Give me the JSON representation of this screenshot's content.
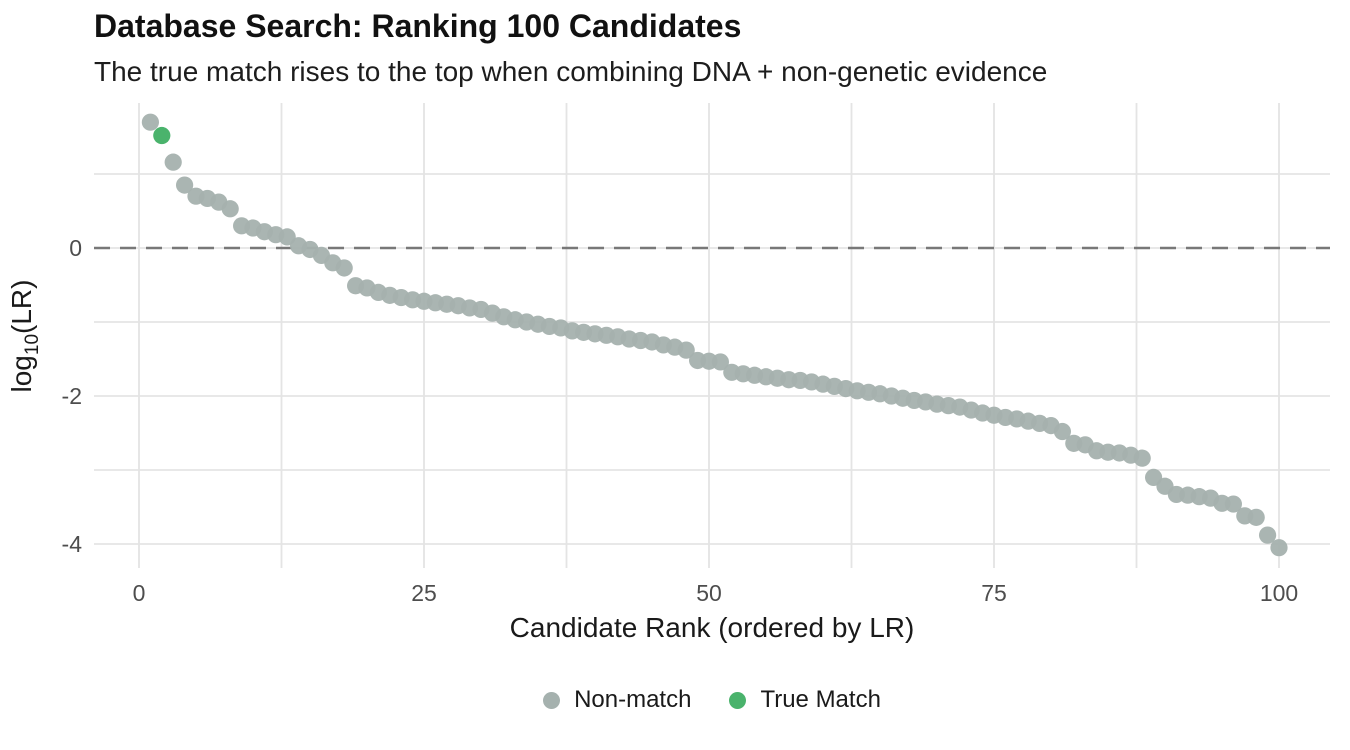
{
  "colors": {
    "background": "#ffffff",
    "gridline": "#e4e4e4",
    "reference_line": "#787878",
    "tick_label": "#4d4d4d",
    "axis_title": "#1a1a1a",
    "non_match": "#a5b1ae",
    "true_match": "#4ab36c"
  },
  "chart_data": {
    "type": "scatter",
    "title": "Database Search: Ranking 100 Candidates",
    "subtitle": "The true match rises to the top when combining DNA + non-genetic evidence",
    "xlabel": "Candidate Rank (ordered by LR)",
    "ylabel": "log10(LR)",
    "ylabel_parts": {
      "main": "log",
      "sub": "10",
      "rest": "(LR)"
    },
    "xlim": [
      0,
      100
    ],
    "ylim": [
      -4.32,
      1.96
    ],
    "x_ticks": [
      0,
      25,
      50,
      75,
      100
    ],
    "y_ticks": [
      0,
      -2,
      -4
    ],
    "x_gridlines": [
      0,
      12.5,
      25,
      37.5,
      50,
      62.5,
      75,
      87.5,
      100
    ],
    "y_gridlines": [
      1,
      0,
      -1,
      -2,
      -3,
      -4
    ],
    "reference_line": {
      "y": 0,
      "style": "dashed"
    },
    "grid": "on",
    "legend_position": "bottom",
    "series": [
      {
        "name": "Non-match",
        "color": "#a5b1ae"
      },
      {
        "name": "True Match",
        "color": "#4ab36c"
      }
    ],
    "true_match_rank": 2,
    "lr_values": [
      1.7,
      1.52,
      1.16,
      0.85,
      0.7,
      0.67,
      0.62,
      0.53,
      0.3,
      0.27,
      0.22,
      0.18,
      0.15,
      0.03,
      -0.02,
      -0.1,
      -0.2,
      -0.27,
      -0.51,
      -0.54,
      -0.6,
      -0.64,
      -0.67,
      -0.7,
      -0.72,
      -0.74,
      -0.76,
      -0.78,
      -0.81,
      -0.83,
      -0.88,
      -0.93,
      -0.97,
      -1.0,
      -1.03,
      -1.06,
      -1.08,
      -1.12,
      -1.14,
      -1.16,
      -1.18,
      -1.2,
      -1.23,
      -1.25,
      -1.27,
      -1.31,
      -1.34,
      -1.38,
      -1.52,
      -1.53,
      -1.54,
      -1.68,
      -1.7,
      -1.72,
      -1.74,
      -1.76,
      -1.78,
      -1.79,
      -1.81,
      -1.84,
      -1.87,
      -1.9,
      -1.93,
      -1.95,
      -1.97,
      -2.0,
      -2.03,
      -2.06,
      -2.08,
      -2.11,
      -2.13,
      -2.15,
      -2.19,
      -2.23,
      -2.26,
      -2.29,
      -2.31,
      -2.34,
      -2.37,
      -2.4,
      -2.48,
      -2.64,
      -2.66,
      -2.74,
      -2.76,
      -2.77,
      -2.8,
      -2.84,
      -3.1,
      -3.22,
      -3.33,
      -3.34,
      -3.36,
      -3.38,
      -3.45,
      -3.46,
      -3.62,
      -3.64,
      -3.88,
      -4.05
    ]
  }
}
